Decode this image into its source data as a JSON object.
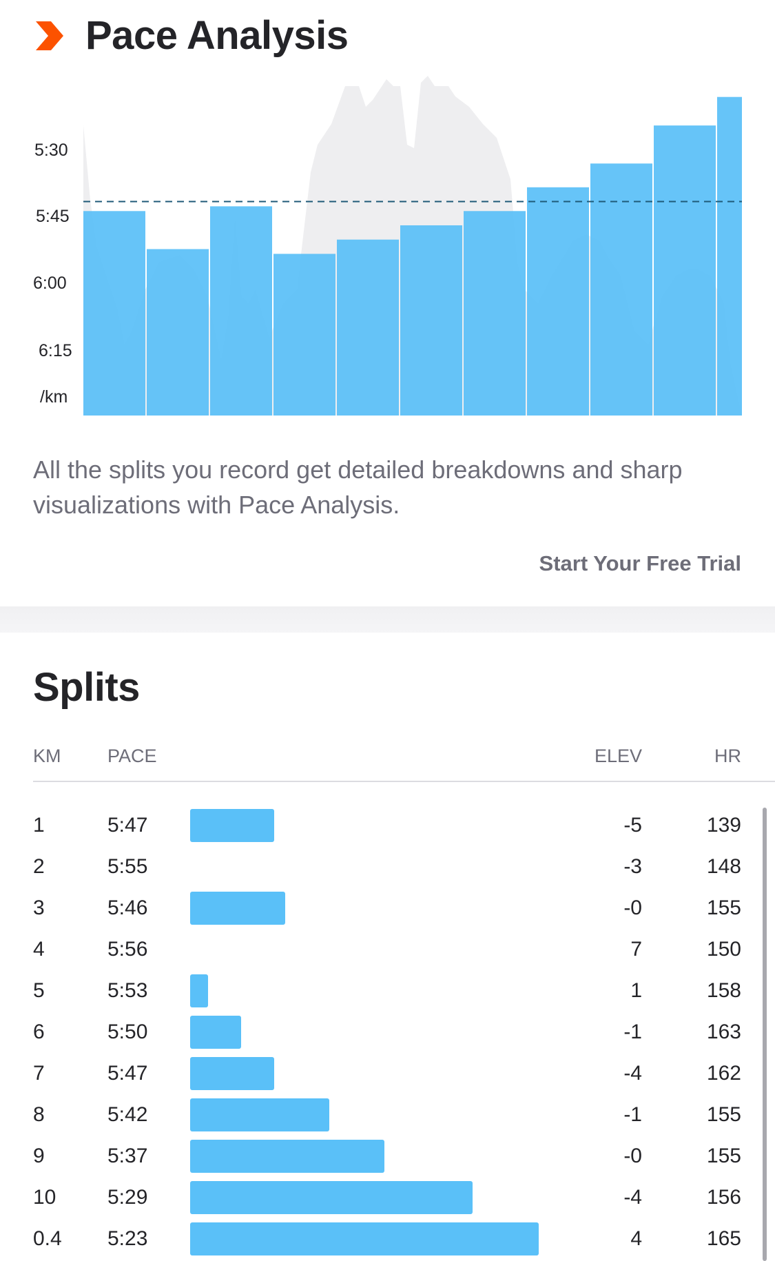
{
  "header": {
    "title": "Pace Analysis",
    "icon": "chevron-right-icon",
    "icon_color": "#fc5200"
  },
  "chart_data": {
    "type": "bar",
    "title": "",
    "xlabel": "",
    "ylabel": "/km",
    "y_tick_labels": [
      "5:30",
      "5:45",
      "6:00",
      "6:15"
    ],
    "y_unit_label": "/km",
    "y_scale_seconds_per_km": [
      320,
      390
    ],
    "y_inverted": true,
    "average_pace_label": "5:45",
    "average_pace_seconds": 345,
    "categories": [
      "1",
      "2",
      "3",
      "4",
      "5",
      "6",
      "7",
      "8",
      "9",
      "10",
      "0.4"
    ],
    "series": [
      {
        "values_seconds": [
          347,
          355,
          346,
          356,
          353,
          350,
          347,
          342,
          337,
          329,
          323
        ],
        "color": "#5ac0f8"
      }
    ],
    "elevation_profile_color": "#eeeef0",
    "grid": false
  },
  "description": "All the splits you record get detailed breakdowns and sharp visualizations with Pace Analysis.",
  "cta_label": "Start Your Free Trial",
  "splits": {
    "title": "Splits",
    "columns": {
      "km": "KM",
      "pace": "PACE",
      "elev": "ELEV",
      "hr": "HR"
    },
    "bar_color": "#5ac0f8",
    "rows": [
      {
        "km": "1",
        "pace": "5:47",
        "elev": "-5",
        "hr": "139"
      },
      {
        "km": "2",
        "pace": "5:55",
        "elev": "-3",
        "hr": "148"
      },
      {
        "km": "3",
        "pace": "5:46",
        "elev": "-0",
        "hr": "155"
      },
      {
        "km": "4",
        "pace": "5:56",
        "elev": "7",
        "hr": "150"
      },
      {
        "km": "5",
        "pace": "5:53",
        "elev": "1",
        "hr": "158"
      },
      {
        "km": "6",
        "pace": "5:50",
        "elev": "-1",
        "hr": "163"
      },
      {
        "km": "7",
        "pace": "5:47",
        "elev": "-4",
        "hr": "162"
      },
      {
        "km": "8",
        "pace": "5:42",
        "elev": "-1",
        "hr": "155"
      },
      {
        "km": "9",
        "pace": "5:37",
        "elev": "-0",
        "hr": "155"
      },
      {
        "km": "10",
        "pace": "5:29",
        "elev": "-4",
        "hr": "156"
      },
      {
        "km": "0.4",
        "pace": "5:23",
        "elev": "4",
        "hr": "165"
      }
    ]
  }
}
